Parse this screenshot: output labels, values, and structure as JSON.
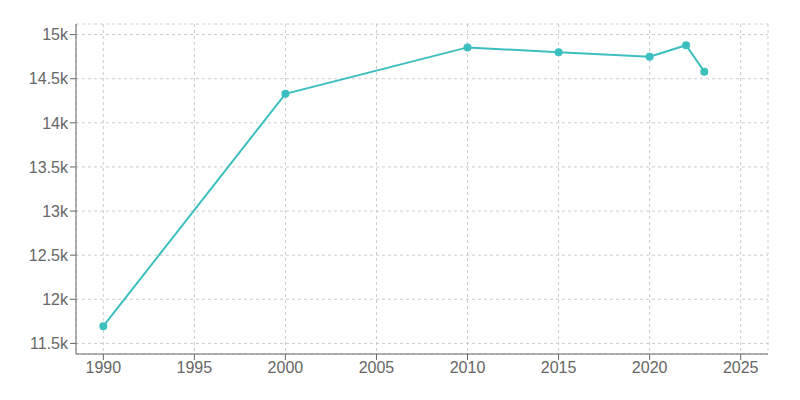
{
  "chart_data": {
    "type": "line",
    "x": [
      1990,
      2000,
      2010,
      2015,
      2020,
      2022,
      2023
    ],
    "values": [
      11695,
      14329,
      14855,
      14800,
      14748,
      14880,
      14580
    ],
    "color": "#3dbfbf",
    "marker": "o",
    "grid": true,
    "xlim": [
      1988.5,
      2026.5
    ],
    "ylim": [
      11380,
      15120
    ],
    "xticks": [
      1990,
      1995,
      2000,
      2005,
      2010,
      2015,
      2020,
      2025
    ],
    "yticks": [
      {
        "value": 11500,
        "label": "11.5k"
      },
      {
        "value": 12000,
        "label": "12k"
      },
      {
        "value": 12500,
        "label": "12.5k"
      },
      {
        "value": 13000,
        "label": "13k"
      },
      {
        "value": 13500,
        "label": "13.5k"
      },
      {
        "value": 14000,
        "label": "14k"
      },
      {
        "value": 14500,
        "label": "14.5k"
      },
      {
        "value": 15000,
        "label": "15k"
      }
    ]
  }
}
